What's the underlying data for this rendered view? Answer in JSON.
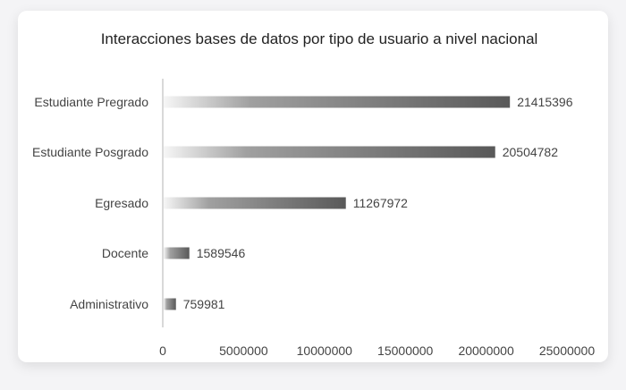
{
  "chart_data": {
    "type": "bar",
    "orientation": "horizontal",
    "title": "Interacciones bases de datos por tipo de usuario a nivel nacional",
    "categories": [
      "Estudiante Pregrado",
      "Estudiante Posgrado",
      "Egresado",
      "Docente",
      "Administrativo"
    ],
    "values": [
      21415396,
      20504782,
      11267972,
      1589546,
      759981
    ],
    "value_labels": [
      "21415396",
      "20504782",
      "11267972",
      "1589546",
      "759981"
    ],
    "xlim": [
      0,
      25000000
    ],
    "xticks": [
      0,
      5000000,
      10000000,
      15000000,
      20000000,
      25000000
    ],
    "xtick_labels": [
      "0",
      "5000000",
      "10000000",
      "15000000",
      "20000000",
      "25000000"
    ],
    "grid": false,
    "colors": {
      "bar_start": "#f4f4f4",
      "bar_end": "#595959",
      "text": "#444444"
    }
  }
}
